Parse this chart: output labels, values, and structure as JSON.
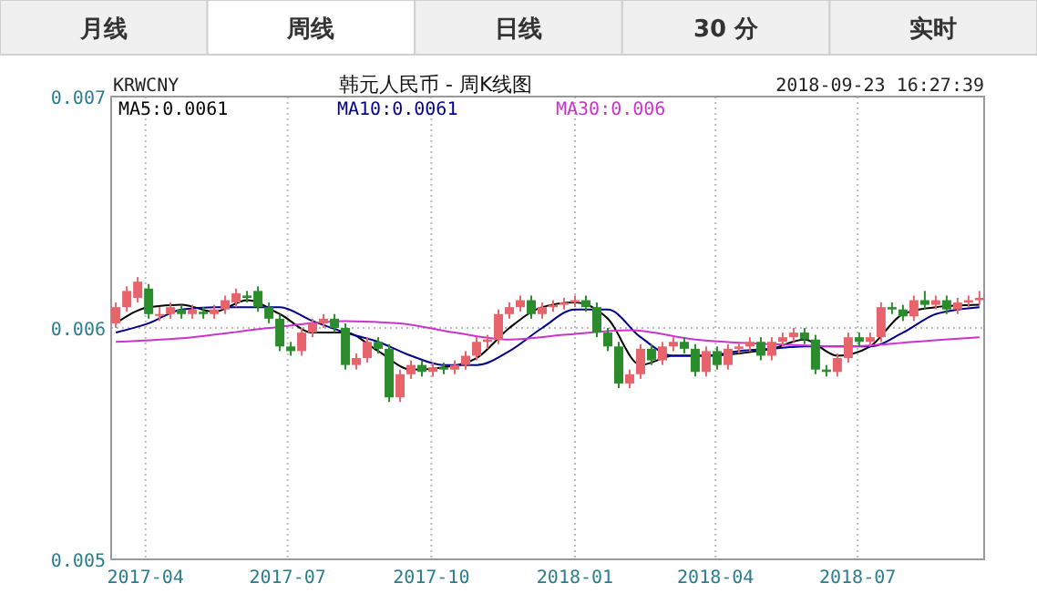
{
  "chart_data": {
    "type": "candlestick",
    "title": "韩元人民币 - 周K线图",
    "annotations": [
      "月线",
      "周线",
      "日线",
      "30 分",
      "实时",
      "KRWCNY",
      "2018-09-23 16:27:39"
    ],
    "x": [
      "2017-03-13",
      "2017-03-20",
      "2017-03-27",
      "2017-04-03",
      "2017-04-10",
      "2017-04-17",
      "2017-04-24",
      "2017-05-01",
      "2017-05-08",
      "2017-05-15",
      "2017-05-22",
      "2017-05-29",
      "2017-06-05",
      "2017-06-12",
      "2017-06-19",
      "2017-06-26",
      "2017-07-03",
      "2017-07-10",
      "2017-07-17",
      "2017-07-24",
      "2017-07-31",
      "2017-08-07",
      "2017-08-14",
      "2017-08-21",
      "2017-08-28",
      "2017-09-04",
      "2017-09-11",
      "2017-09-18",
      "2017-09-25",
      "2017-10-02",
      "2017-10-09",
      "2017-10-16",
      "2017-10-23",
      "2017-10-30",
      "2017-11-06",
      "2017-11-13",
      "2017-11-20",
      "2017-11-27",
      "2017-12-04",
      "2017-12-11",
      "2017-12-18",
      "2017-12-25",
      "2018-01-01",
      "2018-01-08",
      "2018-01-15",
      "2018-01-22",
      "2018-01-29",
      "2018-02-05",
      "2018-02-12",
      "2018-02-19",
      "2018-02-26",
      "2018-03-05",
      "2018-03-12",
      "2018-03-19",
      "2018-03-26",
      "2018-04-02",
      "2018-04-09",
      "2018-04-16",
      "2018-04-23",
      "2018-04-30",
      "2018-05-07",
      "2018-05-14",
      "2018-05-21",
      "2018-05-28",
      "2018-06-04",
      "2018-06-11",
      "2018-06-18",
      "2018-06-25",
      "2018-07-02",
      "2018-07-09",
      "2018-07-16",
      "2018-07-23",
      "2018-07-30",
      "2018-08-06",
      "2018-08-13",
      "2018-08-20",
      "2018-08-27",
      "2018-09-03",
      "2018-09-10",
      "2018-09-17"
    ],
    "ohlc": [
      [
        0.00602,
        0.00611,
        0.006,
        0.00609
      ],
      [
        0.00609,
        0.00618,
        0.00607,
        0.00616
      ],
      [
        0.00613,
        0.00622,
        0.00611,
        0.0062
      ],
      [
        0.00617,
        0.00619,
        0.00604,
        0.00606
      ],
      [
        0.00606,
        0.00609,
        0.00603,
        0.00606
      ],
      [
        0.00606,
        0.00611,
        0.00604,
        0.00609
      ],
      [
        0.00608,
        0.0061,
        0.00604,
        0.00606
      ],
      [
        0.00606,
        0.0061,
        0.00604,
        0.00608
      ],
      [
        0.00607,
        0.00609,
        0.00604,
        0.00606
      ],
      [
        0.00606,
        0.0061,
        0.00604,
        0.00608
      ],
      [
        0.00608,
        0.00614,
        0.00606,
        0.00612
      ],
      [
        0.00611,
        0.00617,
        0.00609,
        0.00615
      ],
      [
        0.00614,
        0.00616,
        0.00611,
        0.00613
      ],
      [
        0.00616,
        0.00618,
        0.00607,
        0.00609
      ],
      [
        0.00609,
        0.00611,
        0.00602,
        0.00604
      ],
      [
        0.00604,
        0.00606,
        0.0059,
        0.00592
      ],
      [
        0.00592,
        0.00594,
        0.00588,
        0.0059
      ],
      [
        0.0059,
        0.006,
        0.00588,
        0.00598
      ],
      [
        0.00598,
        0.00604,
        0.00596,
        0.00602
      ],
      [
        0.00602,
        0.00606,
        0.006,
        0.00604
      ],
      [
        0.00604,
        0.00606,
        0.00598,
        0.006
      ],
      [
        0.006,
        0.00602,
        0.00582,
        0.00584
      ],
      [
        0.00584,
        0.00589,
        0.00582,
        0.00587
      ],
      [
        0.00587,
        0.00596,
        0.00585,
        0.00594
      ],
      [
        0.00594,
        0.00596,
        0.00589,
        0.00591
      ],
      [
        0.00591,
        0.00593,
        0.00568,
        0.0057
      ],
      [
        0.0057,
        0.00582,
        0.00568,
        0.0058
      ],
      [
        0.0058,
        0.00586,
        0.00578,
        0.00584
      ],
      [
        0.00584,
        0.00586,
        0.00579,
        0.00581
      ],
      [
        0.00581,
        0.00585,
        0.00579,
        0.00583
      ],
      [
        0.00583,
        0.00585,
        0.0058,
        0.00582
      ],
      [
        0.00582,
        0.00586,
        0.0058,
        0.00584
      ],
      [
        0.00584,
        0.0059,
        0.00582,
        0.00588
      ],
      [
        0.00588,
        0.00596,
        0.00586,
        0.00594
      ],
      [
        0.00594,
        0.00597,
        0.00591,
        0.00595
      ],
      [
        0.00595,
        0.00608,
        0.00593,
        0.00606
      ],
      [
        0.00606,
        0.00611,
        0.00604,
        0.00609
      ],
      [
        0.00609,
        0.00614,
        0.00607,
        0.00612
      ],
      [
        0.00612,
        0.00614,
        0.00604,
        0.00606
      ],
      [
        0.00606,
        0.00611,
        0.00604,
        0.00609
      ],
      [
        0.00609,
        0.00612,
        0.00607,
        0.0061
      ],
      [
        0.0061,
        0.00613,
        0.00608,
        0.00611
      ],
      [
        0.00611,
        0.00614,
        0.00609,
        0.00612
      ],
      [
        0.00612,
        0.00614,
        0.00607,
        0.00609
      ],
      [
        0.00609,
        0.00611,
        0.00596,
        0.00598
      ],
      [
        0.00598,
        0.006,
        0.0059,
        0.00592
      ],
      [
        0.00592,
        0.00594,
        0.00574,
        0.00576
      ],
      [
        0.00576,
        0.00582,
        0.00574,
        0.0058
      ],
      [
        0.0058,
        0.00593,
        0.00578,
        0.00591
      ],
      [
        0.00591,
        0.00593,
        0.00584,
        0.00586
      ],
      [
        0.00586,
        0.00594,
        0.00584,
        0.00592
      ],
      [
        0.00592,
        0.00596,
        0.0059,
        0.00594
      ],
      [
        0.00594,
        0.00596,
        0.00589,
        0.00591
      ],
      [
        0.00591,
        0.00593,
        0.00579,
        0.00581
      ],
      [
        0.00581,
        0.00592,
        0.00579,
        0.0059
      ],
      [
        0.0059,
        0.00592,
        0.00582,
        0.00584
      ],
      [
        0.00584,
        0.00593,
        0.00582,
        0.00591
      ],
      [
        0.00591,
        0.00594,
        0.00589,
        0.00592
      ],
      [
        0.00592,
        0.00596,
        0.0059,
        0.00594
      ],
      [
        0.00594,
        0.00596,
        0.00586,
        0.00588
      ],
      [
        0.00588,
        0.00596,
        0.00586,
        0.00594
      ],
      [
        0.00594,
        0.00598,
        0.00592,
        0.00596
      ],
      [
        0.00596,
        0.006,
        0.00594,
        0.00598
      ],
      [
        0.00598,
        0.006,
        0.00593,
        0.00595
      ],
      [
        0.00595,
        0.00597,
        0.0058,
        0.00582
      ],
      [
        0.00582,
        0.00584,
        0.00579,
        0.00581
      ],
      [
        0.00581,
        0.00589,
        0.00579,
        0.00587
      ],
      [
        0.00587,
        0.00598,
        0.00585,
        0.00596
      ],
      [
        0.00596,
        0.00598,
        0.00592,
        0.00594
      ],
      [
        0.00594,
        0.00598,
        0.00592,
        0.00596
      ],
      [
        0.00596,
        0.00611,
        0.00594,
        0.00609
      ],
      [
        0.00609,
        0.00611,
        0.00606,
        0.00608
      ],
      [
        0.00608,
        0.0061,
        0.00603,
        0.00605
      ],
      [
        0.00605,
        0.00614,
        0.00603,
        0.00612
      ],
      [
        0.00612,
        0.00616,
        0.00608,
        0.0061
      ],
      [
        0.0061,
        0.00614,
        0.00608,
        0.00612
      ],
      [
        0.00612,
        0.00614,
        0.00606,
        0.00608
      ],
      [
        0.00608,
        0.00613,
        0.00606,
        0.00611
      ],
      [
        0.00611,
        0.00614,
        0.00609,
        0.00612
      ],
      [
        0.00612,
        0.00616,
        0.0061,
        0.00613
      ]
    ],
    "colors": [
      "#e8646c",
      "#e8646c",
      "#e8646c",
      "#2a8c2a",
      "#e8646c",
      "#e8646c",
      "#2a8c2a",
      "#e8646c",
      "#2a8c2a",
      "#e8646c",
      "#e8646c",
      "#e8646c",
      "#2a8c2a",
      "#2a8c2a",
      "#2a8c2a",
      "#2a8c2a",
      "#2a8c2a",
      "#e8646c",
      "#e8646c",
      "#e8646c",
      "#2a8c2a",
      "#2a8c2a",
      "#e8646c",
      "#e8646c",
      "#2a8c2a",
      "#2a8c2a",
      "#e8646c",
      "#e8646c",
      "#2a8c2a",
      "#e8646c",
      "#2a8c2a",
      "#e8646c",
      "#e8646c",
      "#e8646c",
      "#e8646c",
      "#e8646c",
      "#e8646c",
      "#e8646c",
      "#2a8c2a",
      "#e8646c",
      "#e8646c",
      "#e8646c",
      "#e8646c",
      "#2a8c2a",
      "#2a8c2a",
      "#2a8c2a",
      "#2a8c2a",
      "#e8646c",
      "#e8646c",
      "#2a8c2a",
      "#e8646c",
      "#e8646c",
      "#2a8c2a",
      "#2a8c2a",
      "#e8646c",
      "#2a8c2a",
      "#e8646c",
      "#e8646c",
      "#e8646c",
      "#2a8c2a",
      "#e8646c",
      "#e8646c",
      "#e8646c",
      "#2a8c2a",
      "#2a8c2a",
      "#2a8c2a",
      "#e8646c",
      "#e8646c",
      "#2a8c2a",
      "#e8646c",
      "#e8646c",
      "#2a8c2a",
      "#2a8c2a",
      "#e8646c",
      "#2a8c2a",
      "#e8646c",
      "#2a8c2a",
      "#e8646c",
      "#e8646c",
      "#e8646c"
    ],
    "series": [
      {
        "name": "MA5:0.0061",
        "type": "line",
        "color": "#000000",
        "x": [
          "2017-03-13",
          "2017-04-03",
          "2017-04-24",
          "2017-05-15",
          "2017-06-05",
          "2017-06-26",
          "2017-07-17",
          "2017-08-07",
          "2017-08-28",
          "2017-09-18",
          "2017-10-09",
          "2017-10-30",
          "2017-11-20",
          "2017-12-11",
          "2018-01-01",
          "2018-01-22",
          "2018-02-12",
          "2018-03-05",
          "2018-03-26",
          "2018-04-16",
          "2018-05-07",
          "2018-05-28",
          "2018-06-18",
          "2018-07-09",
          "2018-07-30",
          "2018-08-20",
          "2018-09-17"
        ],
        "values": [
          0.00602,
          0.00609,
          0.0061,
          0.00607,
          0.00612,
          0.00606,
          0.00598,
          0.00598,
          0.0059,
          0.00582,
          0.00583,
          0.00587,
          0.006,
          0.00609,
          0.00611,
          0.00604,
          0.00584,
          0.00588,
          0.00588,
          0.00589,
          0.00591,
          0.00595,
          0.00588,
          0.00592,
          0.00606,
          0.00609,
          0.0061
        ]
      },
      {
        "name": "MA10:0.0061",
        "type": "line",
        "color": "#00008b",
        "x": [
          "2017-03-13",
          "2017-04-03",
          "2017-04-24",
          "2017-05-15",
          "2017-06-05",
          "2017-06-26",
          "2017-07-17",
          "2017-08-07",
          "2017-08-28",
          "2017-09-18",
          "2017-10-09",
          "2017-10-30",
          "2017-11-20",
          "2017-12-11",
          "2018-01-01",
          "2018-01-22",
          "2018-02-12",
          "2018-03-05",
          "2018-03-26",
          "2018-04-16",
          "2018-05-07",
          "2018-05-28",
          "2018-06-18",
          "2018-07-09",
          "2018-07-30",
          "2018-08-20",
          "2018-09-17"
        ],
        "values": [
          0.00598,
          0.00602,
          0.00608,
          0.00609,
          0.00609,
          0.00609,
          0.00603,
          0.00598,
          0.00594,
          0.00588,
          0.00584,
          0.00584,
          0.0059,
          0.006,
          0.00608,
          0.00608,
          0.00596,
          0.00588,
          0.00588,
          0.0059,
          0.00591,
          0.00592,
          0.00592,
          0.00592,
          0.00598,
          0.00606,
          0.00609
        ]
      },
      {
        "name": "MA30:0.006",
        "type": "line",
        "color": "#cc33cc",
        "x": [
          "2017-03-13",
          "2017-05-01",
          "2017-06-19",
          "2017-08-07",
          "2017-09-11",
          "2017-10-16",
          "2017-11-20",
          "2017-12-25",
          "2018-02-05",
          "2018-03-19",
          "2018-05-07",
          "2018-06-25",
          "2018-08-06",
          "2018-09-17"
        ],
        "values": [
          0.00594,
          0.00596,
          0.006,
          0.00603,
          0.00602,
          0.00598,
          0.00595,
          0.00597,
          0.00599,
          0.00595,
          0.00593,
          0.00592,
          0.00594,
          0.00596
        ]
      }
    ],
    "xlim": [
      "2017-03-10",
      "2018-09-20"
    ],
    "xticks": [
      {
        "value": "2017-04-01",
        "label": "2017-04"
      },
      {
        "value": "2017-07-01",
        "label": "2017-07"
      },
      {
        "value": "2017-10-01",
        "label": "2017-10"
      },
      {
        "value": "2018-01-01",
        "label": "2018-01"
      },
      {
        "value": "2018-04-01",
        "label": "2018-04"
      },
      {
        "value": "2018-07-01",
        "label": "2018-07"
      }
    ],
    "ylim": [
      0.005,
      0.007
    ],
    "yticks": [
      {
        "value": 0.005,
        "label": "0.005"
      },
      {
        "value": 0.006,
        "label": "0.006"
      },
      {
        "value": 0.007,
        "label": "0.007"
      }
    ],
    "grid": true,
    "legend": "top left"
  }
}
